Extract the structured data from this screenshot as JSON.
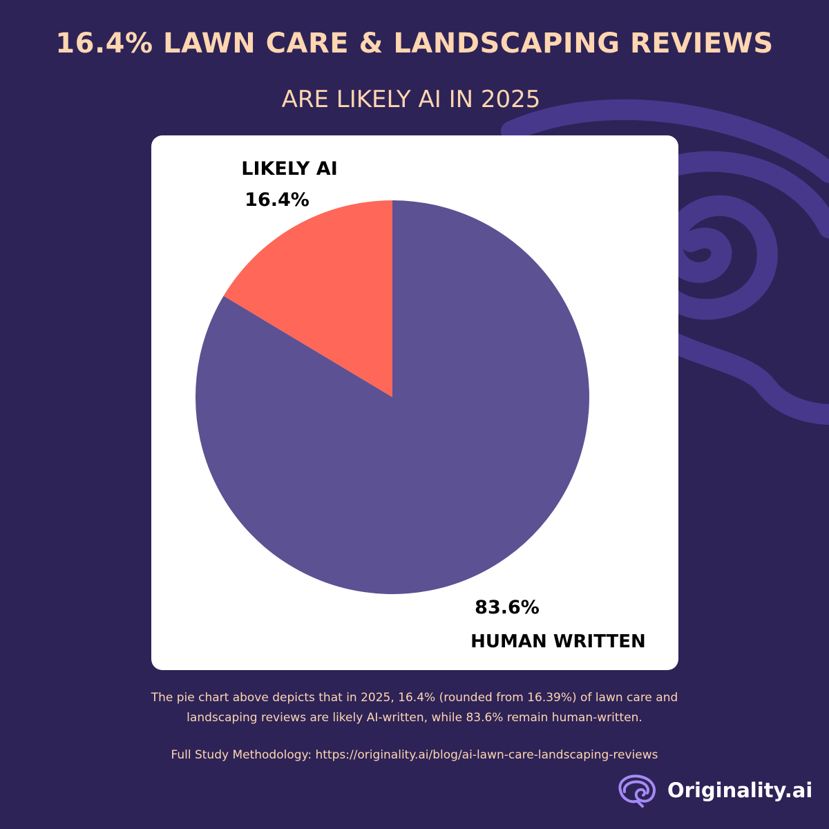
{
  "title": "16.4% LAWN CARE & LANDSCAPING REVIEWS",
  "subtitle": "ARE LIKELY AI IN 2025",
  "colors": {
    "background": "#2d2357",
    "accent_text": "#ffd6b0",
    "likely_ai": "#ff6759",
    "human_written": "#5c5192",
    "card": "#ffffff",
    "swirl": "#4a3a8f"
  },
  "chart_data": {
    "type": "pie",
    "slices": [
      {
        "name": "LIKELY AI",
        "value": 16.4,
        "label": "16.4%",
        "color": "#ff6759"
      },
      {
        "name": "HUMAN WRITTEN",
        "value": 83.6,
        "label": "83.6%",
        "color": "#5c5192"
      }
    ]
  },
  "caption": {
    "line1": "The pie chart above depicts that in 2025, 16.4% (rounded from 16.39%) of lawn care and",
    "line2": "landscaping reviews are likely AI-written, while 83.6% remain human-written."
  },
  "methodology": "Full Study Methodology: https://originality.ai/blog/ai-lawn-care-landscaping-reviews",
  "brand": {
    "name": "Originality.ai",
    "logo_icon": "brain-icon"
  }
}
